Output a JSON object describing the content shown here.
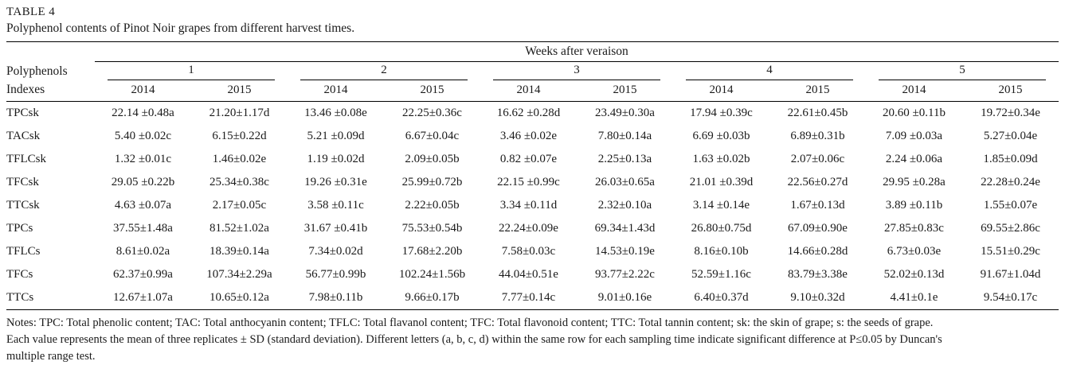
{
  "title": "TABLE 4",
  "caption": "Polyphenol contents of Pinot Noir grapes from different harvest times.",
  "table": {
    "group_header": "Weeks after veraison",
    "row_header_line1": "Polyphenols",
    "row_header_line2": "Indexes",
    "week_groups": [
      "1",
      "2",
      "3",
      "4",
      "5"
    ],
    "year_headers": [
      "2014",
      "2015",
      "2014",
      "2015",
      "2014",
      "2015",
      "2014",
      "2015",
      "2014",
      "2015"
    ],
    "rows": [
      {
        "label": "TPCsk",
        "values": [
          "22.14 ±0.48a",
          "21.20±1.17d",
          "13.46 ±0.08e",
          "22.25±0.36c",
          "16.62 ±0.28d",
          "23.49±0.30a",
          "17.94 ±0.39c",
          "22.61±0.45b",
          "20.60 ±0.11b",
          "19.72±0.34e"
        ]
      },
      {
        "label": "TACsk",
        "values": [
          "5.40 ±0.02c",
          "6.15±0.22d",
          "5.21 ±0.09d",
          "6.67±0.04c",
          "3.46 ±0.02e",
          "7.80±0.14a",
          "6.69 ±0.03b",
          "6.89±0.31b",
          "7.09 ±0.03a",
          "5.27±0.04e"
        ]
      },
      {
        "label": "TFLCsk",
        "values": [
          "1.32 ±0.01c",
          "1.46±0.02e",
          "1.19 ±0.02d",
          "2.09±0.05b",
          "0.82 ±0.07e",
          "2.25±0.13a",
          "1.63 ±0.02b",
          "2.07±0.06c",
          "2.24 ±0.06a",
          "1.85±0.09d"
        ]
      },
      {
        "label": "TFCsk",
        "values": [
          "29.05 ±0.22b",
          "25.34±0.38c",
          "19.26 ±0.31e",
          "25.99±0.72b",
          "22.15 ±0.99c",
          "26.03±0.65a",
          "21.01 ±0.39d",
          "22.56±0.27d",
          "29.95 ±0.28a",
          "22.28±0.24e"
        ]
      },
      {
        "label": "TTCsk",
        "values": [
          "4.63 ±0.07a",
          "2.17±0.05c",
          "3.58 ±0.11c",
          "2.22±0.05b",
          "3.34 ±0.11d",
          "2.32±0.10a",
          "3.14 ±0.14e",
          "1.67±0.13d",
          "3.89 ±0.11b",
          "1.55±0.07e"
        ]
      },
      {
        "label": "TPCs",
        "values": [
          "37.55±1.48a",
          "81.52±1.02a",
          "31.67 ±0.41b",
          "75.53±0.54b",
          "22.24±0.09e",
          "69.34±1.43d",
          "26.80±0.75d",
          "67.09±0.90e",
          "27.85±0.83c",
          "69.55±2.86c"
        ]
      },
      {
        "label": "TFLCs",
        "values": [
          "8.61±0.02a",
          "18.39±0.14a",
          "7.34±0.02d",
          "17.68±2.20b",
          "7.58±0.03c",
          "14.53±0.19e",
          "8.16±0.10b",
          "14.66±0.28d",
          "6.73±0.03e",
          "15.51±0.29c"
        ]
      },
      {
        "label": "TFCs",
        "values": [
          "62.37±0.99a",
          "107.34±2.29a",
          "56.77±0.99b",
          "102.24±1.56b",
          "44.04±0.51e",
          "93.77±2.22c",
          "52.59±1.16c",
          "83.79±3.38e",
          "52.02±0.13d",
          "91.67±1.04d"
        ]
      },
      {
        "label": "TTCs",
        "values": [
          "12.67±1.07a",
          "10.65±0.12a",
          "7.98±0.11b",
          "9.66±0.17b",
          "7.77±0.14c",
          "9.01±0.16e",
          "6.40±0.37d",
          "9.10±0.32d",
          "4.41±0.1e",
          "9.54±0.17c"
        ]
      }
    ]
  },
  "notes": [
    "Notes: TPC: Total phenolic content; TAC: Total anthocyanin content; TFLC: Total flavanol content; TFC: Total flavonoid content; TTC: Total tannin content; sk: the skin of grape; s: the seeds of grape.",
    "Each value represents the mean of three replicates ± SD (standard deviation). Different letters (a, b, c, d) within the same row for each sampling time indicate significant difference at P≤0.05 by Duncan's",
    "multiple range test."
  ]
}
